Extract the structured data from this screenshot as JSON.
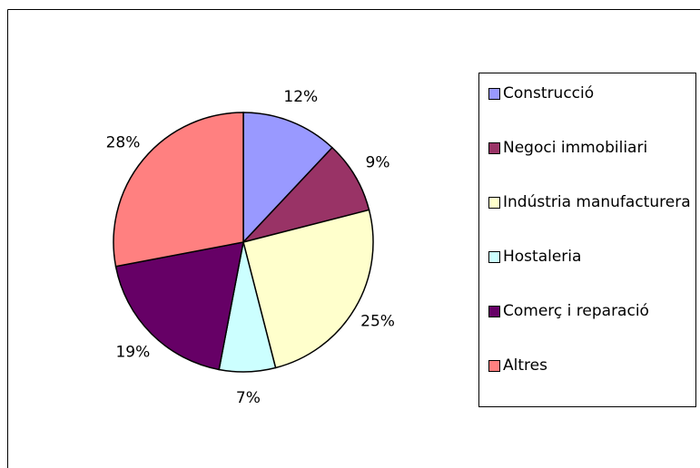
{
  "chart_data": {
    "type": "pie",
    "categories": [
      "Construcció",
      "Negoci immobiliari",
      "Indústria manufacturera",
      "Hostaleria",
      "Comerç i reparació",
      "Altres"
    ],
    "values": [
      12,
      9,
      25,
      7,
      19,
      28
    ],
    "value_labels": [
      "12%",
      "9%",
      "25%",
      "7%",
      "19%",
      "28%"
    ],
    "colors": [
      "#9999ff",
      "#993366",
      "#ffffcc",
      "#ccffff",
      "#660066",
      "#ff8080"
    ],
    "legend": "right"
  }
}
